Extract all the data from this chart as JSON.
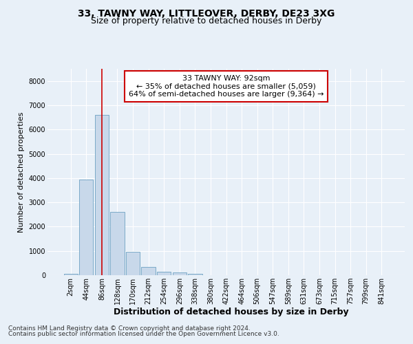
{
  "title1": "33, TAWNY WAY, LITTLEOVER, DERBY, DE23 3XG",
  "title2": "Size of property relative to detached houses in Derby",
  "xlabel": "Distribution of detached houses by size in Derby",
  "ylabel": "Number of detached properties",
  "bar_labels": [
    "2sqm",
    "44sqm",
    "86sqm",
    "128sqm",
    "170sqm",
    "212sqm",
    "254sqm",
    "296sqm",
    "338sqm",
    "380sqm",
    "422sqm",
    "464sqm",
    "506sqm",
    "547sqm",
    "589sqm",
    "631sqm",
    "673sqm",
    "715sqm",
    "757sqm",
    "799sqm",
    "841sqm"
  ],
  "bar_values": [
    50,
    3950,
    6600,
    2600,
    950,
    330,
    150,
    110,
    70,
    0,
    0,
    0,
    0,
    0,
    0,
    0,
    0,
    0,
    0,
    0,
    0
  ],
  "bar_color": "#c8d8ea",
  "bar_edge_color": "#7baac8",
  "vline_x": 2,
  "vline_color": "#cc0000",
  "ylim": [
    0,
    8500
  ],
  "yticks": [
    0,
    1000,
    2000,
    3000,
    4000,
    5000,
    6000,
    7000,
    8000
  ],
  "annotation_text": "33 TAWNY WAY: 92sqm\n← 35% of detached houses are smaller (5,059)\n64% of semi-detached houses are larger (9,364) →",
  "annotation_box_color": "#ffffff",
  "annotation_border_color": "#cc0000",
  "footer1": "Contains HM Land Registry data © Crown copyright and database right 2024.",
  "footer2": "Contains public sector information licensed under the Open Government Licence v3.0.",
  "background_color": "#e8f0f8",
  "plot_bg_color": "#e8f0f8",
  "grid_color": "#ffffff",
  "title1_fontsize": 10,
  "title2_fontsize": 9,
  "tick_fontsize": 7,
  "ylabel_fontsize": 8,
  "xlabel_fontsize": 9,
  "annotation_fontsize": 8,
  "footer_fontsize": 6.5
}
